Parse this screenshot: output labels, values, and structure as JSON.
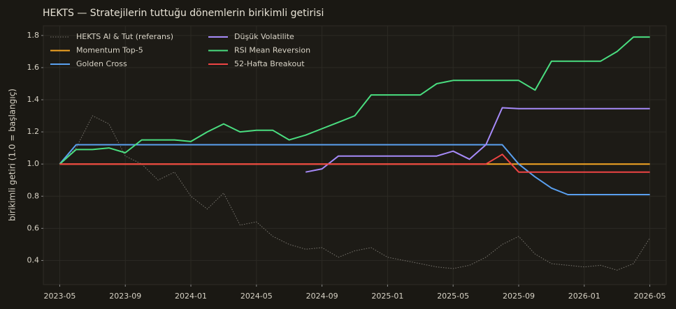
{
  "chart_data": {
    "type": "line",
    "title": "HEKTS — Stratejilerin tuttuğu dönemlerin birikimli getirisi",
    "y_label": "birikimli getiri (1.0 = başlangıç)",
    "x": [
      "2023-05",
      "2023-06",
      "2023-07",
      "2023-08",
      "2023-09",
      "2023-10",
      "2023-11",
      "2023-12",
      "2024-01",
      "2024-02",
      "2024-03",
      "2024-04",
      "2024-05",
      "2024-06",
      "2024-07",
      "2024-08",
      "2024-09",
      "2024-10",
      "2024-11",
      "2024-12",
      "2025-01",
      "2025-02",
      "2025-03",
      "2025-04",
      "2025-05",
      "2025-06",
      "2025-07",
      "2025-08",
      "2025-09",
      "2025-10",
      "2025-11",
      "2025-12",
      "2026-01",
      "2026-02",
      "2026-03",
      "2026-04",
      "2026-05"
    ],
    "xlim": [
      "2023-04",
      "2026-06"
    ],
    "xticks": [
      "2023-05",
      "2023-09",
      "2024-01",
      "2024-05",
      "2024-09",
      "2025-01",
      "2025-05",
      "2025-09",
      "2026-01",
      "2026-05"
    ],
    "ylim": [
      0.25,
      1.86
    ],
    "yticks": [
      0.4,
      0.6,
      0.8,
      {
        "value": 1,
        "label": "1.0"
      },
      1.2,
      1.4,
      1.6,
      1.8
    ],
    "grid": true,
    "legend": "upper left",
    "series": [
      {
        "name": "HEKTS Al & Tut (referans)",
        "color": "#7a7770",
        "dash": "dotted",
        "values": [
          1.0,
          1.1,
          1.3,
          1.25,
          1.05,
          1.0,
          0.9,
          0.95,
          0.8,
          0.72,
          0.82,
          0.62,
          0.64,
          0.55,
          0.5,
          0.47,
          0.48,
          0.42,
          0.46,
          0.48,
          0.42,
          0.4,
          0.38,
          0.36,
          0.35,
          0.37,
          0.42,
          0.5,
          0.55,
          0.44,
          0.38,
          0.37,
          0.36,
          0.37,
          0.34,
          0.38,
          0.54
        ]
      },
      {
        "name": "Momentum Top-5",
        "color": "#f5a623",
        "values": [
          1.0,
          1.0,
          1.0,
          1.0,
          1.0,
          1.0,
          1.0,
          1.0,
          1.0,
          1.0,
          1.0,
          1.0,
          1.0,
          1.0,
          1.0,
          1.0,
          1.0,
          1.0,
          1.0,
          1.0,
          1.0,
          1.0,
          1.0,
          1.0,
          1.0,
          1.0,
          1.0,
          1.0,
          1.0,
          1.0,
          1.0,
          1.0,
          1.0,
          1.0,
          1.0,
          1.0,
          1.0
        ]
      },
      {
        "name": "Golden Cross",
        "color": "#5aa0f0",
        "values": [
          1.0,
          1.12,
          1.12,
          1.12,
          1.12,
          1.12,
          1.12,
          1.12,
          1.12,
          1.12,
          1.12,
          1.12,
          1.12,
          1.12,
          1.12,
          1.12,
          1.12,
          1.12,
          1.12,
          1.12,
          1.12,
          1.12,
          1.12,
          1.12,
          1.12,
          1.12,
          1.12,
          1.12,
          1.0,
          0.92,
          0.85,
          0.81,
          0.81,
          0.81,
          0.81,
          0.81,
          0.81
        ]
      },
      {
        "name": "Düşük Volatilite",
        "color": "#a78bfa",
        "values": [
          null,
          null,
          null,
          null,
          null,
          null,
          null,
          null,
          null,
          null,
          null,
          null,
          null,
          null,
          null,
          0.95,
          0.97,
          1.05,
          1.05,
          1.05,
          1.05,
          1.05,
          1.05,
          1.05,
          1.08,
          1.03,
          1.12,
          1.35,
          1.345,
          1.345,
          1.345,
          1.345,
          1.345,
          1.345,
          1.345,
          1.345,
          1.345
        ]
      },
      {
        "name": "RSI Mean Reversion",
        "color": "#4ade80",
        "values": [
          1.0,
          1.09,
          1.09,
          1.1,
          1.07,
          1.15,
          1.15,
          1.15,
          1.14,
          1.2,
          1.25,
          1.2,
          1.21,
          1.21,
          1.15,
          1.18,
          1.22,
          1.26,
          1.3,
          1.43,
          1.43,
          1.43,
          1.43,
          1.5,
          1.52,
          1.52,
          1.52,
          1.52,
          1.52,
          1.46,
          1.64,
          1.64,
          1.64,
          1.64,
          1.7,
          1.79,
          1.79
        ]
      },
      {
        "name": "52-Hafta Breakout",
        "color": "#ef4444",
        "values": [
          1.0,
          1.0,
          1.0,
          1.0,
          1.0,
          1.0,
          1.0,
          1.0,
          1.0,
          1.0,
          1.0,
          1.0,
          1.0,
          1.0,
          1.0,
          1.0,
          1.0,
          1.0,
          1.0,
          1.0,
          1.0,
          1.0,
          1.0,
          1.0,
          1.0,
          1.0,
          1.0,
          1.06,
          0.95,
          0.95,
          0.95,
          0.95,
          0.95,
          0.95,
          0.95,
          0.95,
          0.95
        ]
      }
    ]
  }
}
